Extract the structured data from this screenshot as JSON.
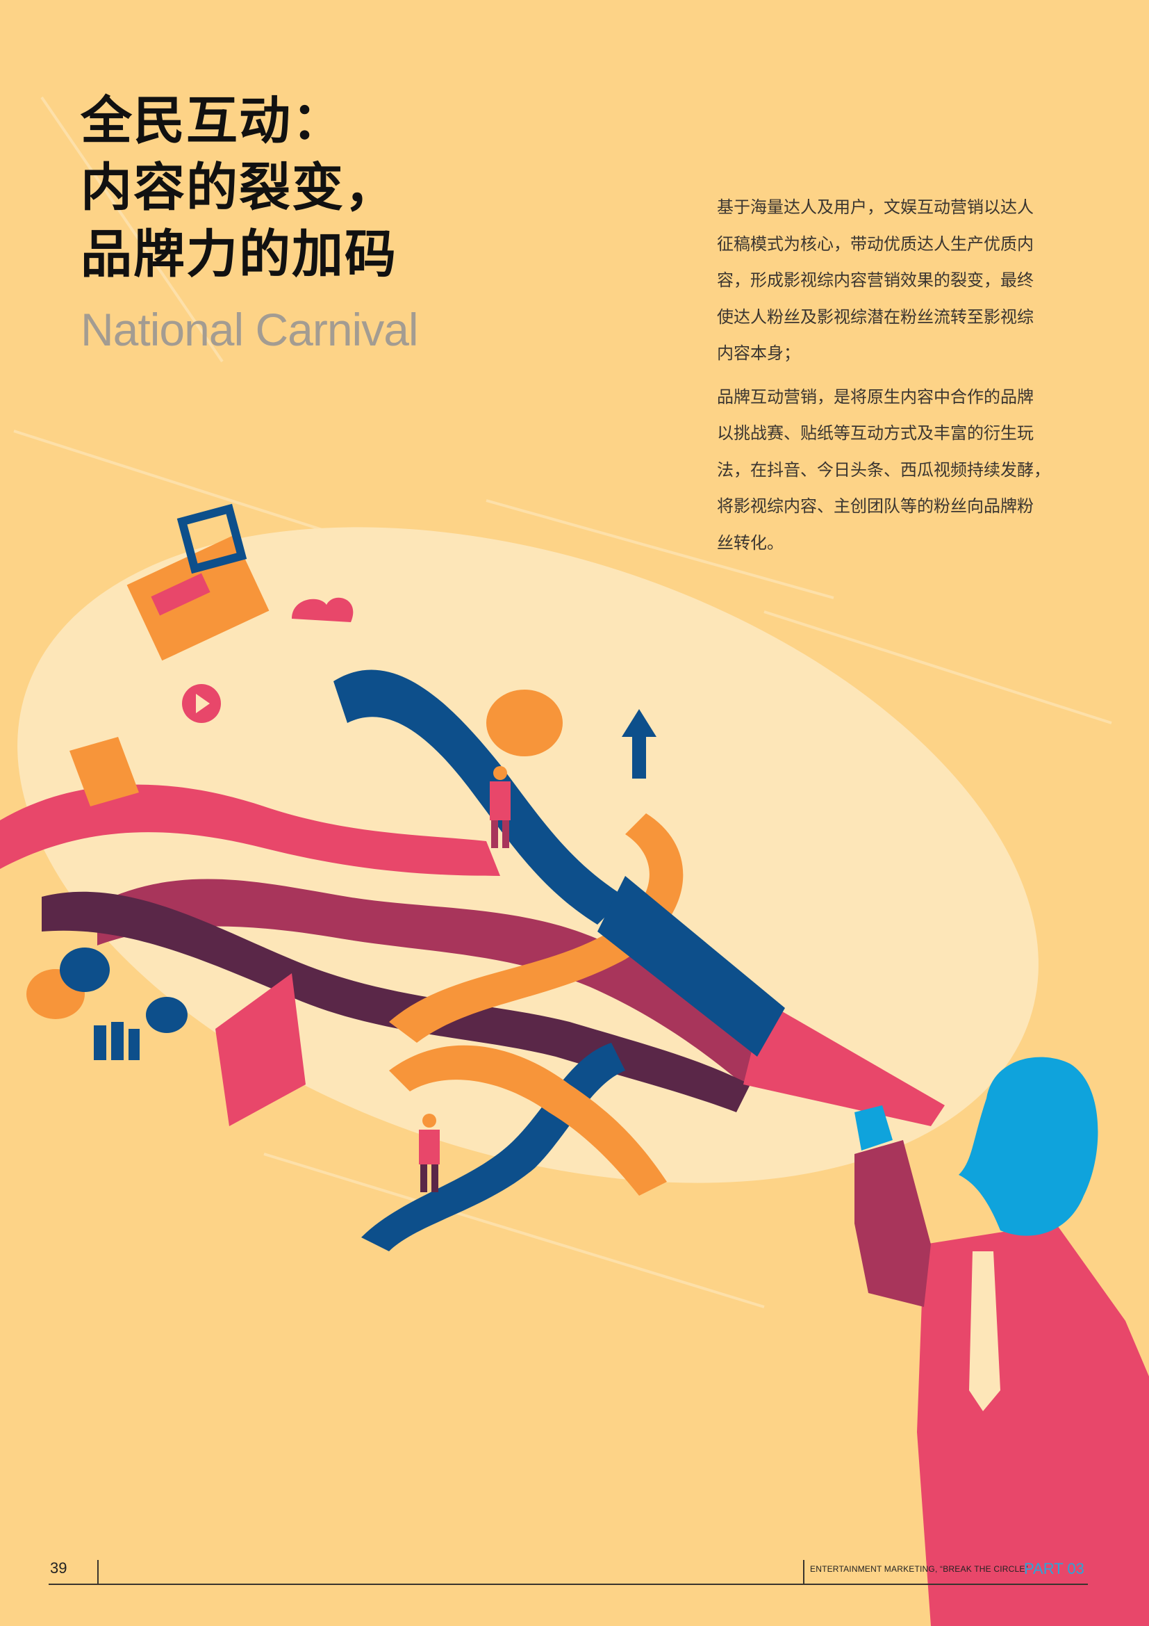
{
  "header": {
    "title_lines": [
      "全民互动：",
      "内容的裂变，",
      "品牌力的加码"
    ],
    "subtitle": "National Carnival"
  },
  "body": {
    "paragraph1_lines": [
      "基于海量达人及用户，文娱互动营销以达人",
      "征稿模式为核心，带动优质达人生产优质内",
      "容，形成影视综内容营销效果的裂变，最终",
      "使达人粉丝及影视综潜在粉丝流转至影视综",
      "内容本身；"
    ],
    "paragraph2_lines": [
      "品牌互动营销，是将原生内容中合作的品牌",
      "以挑战赛、贴纸等互动方式及丰富的衍生玩",
      "法，在抖音、今日头条、西瓜视频持续发酵，",
      "将影视综内容、主创团队等的粉丝向品牌粉",
      "丝转化。"
    ]
  },
  "illustration": {
    "subject": "megaphone-shouting-man-icon",
    "colors": {
      "background": "#fdd387",
      "glow": "#fde6b8",
      "pink": "#e8476a",
      "navy": "#0d4f8b",
      "orange": "#f7953a",
      "plum": "#a8355b",
      "dark_plum": "#5a2748",
      "sky_blue": "#0fa3dc"
    }
  },
  "footer": {
    "page_number": "39",
    "label": "ENTERTAINMENT MARKETING, “BREAK THE CIRCLE”",
    "part": "PART 03"
  }
}
